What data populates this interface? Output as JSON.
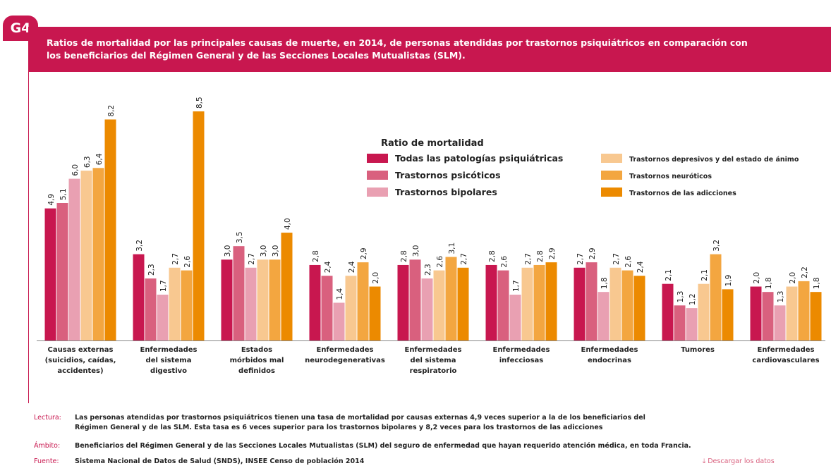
{
  "badge": "G4",
  "chart_data": {
    "type": "bar",
    "title": "Ratios de mortalidad por las principales causas de muerte, en 2014, de personas atendidas por trastornos psiquiátricos en comparación con\nlos beneficiarios del Régimen General y de las Secciones Locales Mutualistas (SLM).",
    "legend_title": "Ratio de mortalidad",
    "categories": [
      "Causas externas\n(suicidios, caídas,\naccidentes)",
      "Enfermedades\ndel sistema\ndigestivo",
      "Estados\nmórbidos mal\ndefinidos",
      "Enfermedades\nneurodegenerativas",
      "Enfermedades\ndel sistema\nrespiratorio",
      "Enfermedades\ninfecciosas",
      "Enfermedades\nendocrinas",
      "Tumores",
      "Enfermedades\ncardiovasculares"
    ],
    "series": [
      {
        "name": "Todas las patologías psiquiátricas",
        "color": "#c8174f",
        "values": [
          4.9,
          3.2,
          3.0,
          2.8,
          2.8,
          2.8,
          2.7,
          2.1,
          2.0
        ],
        "value_labels": [
          "4,9",
          "3,2",
          "3,0",
          "2,8",
          "2,8",
          "2,8",
          "2,7",
          "2,1",
          "2,0"
        ]
      },
      {
        "name": "Trastornos psicóticos",
        "color": "#d9607e",
        "values": [
          5.1,
          2.3,
          3.5,
          2.4,
          3.0,
          2.6,
          2.9,
          1.3,
          1.8
        ],
        "value_labels": [
          "5,1",
          "2,3",
          "3,5",
          "2,4",
          "3,0",
          "2,6",
          "2,9",
          "1,3",
          "1,8"
        ]
      },
      {
        "name": "Trastornos bipolares",
        "color": "#e9a0b2",
        "values": [
          6.0,
          1.7,
          2.7,
          1.4,
          2.3,
          1.7,
          1.8,
          1.2,
          1.3
        ],
        "value_labels": [
          "6,0",
          "1,7",
          "2,7",
          "1,4",
          "2,3",
          "1,7",
          "1,8",
          "1,2",
          "1,3"
        ]
      },
      {
        "name": "Trastornos depresivos y del estado de ánimo",
        "color": "#f8c890",
        "values": [
          6.3,
          2.7,
          3.0,
          2.4,
          2.6,
          2.7,
          2.7,
          2.1,
          2.0
        ],
        "value_labels": [
          "6,3",
          "2,7",
          "3,0",
          "2,4",
          "2,6",
          "2,7",
          "2,7",
          "2,1",
          "2,0"
        ]
      },
      {
        "name": "Trastornos neuróticos",
        "color": "#f3a640",
        "values": [
          6.4,
          2.6,
          3.0,
          2.9,
          3.1,
          2.8,
          2.6,
          3.2,
          2.2
        ],
        "value_labels": [
          "6,4",
          "2,6",
          "3,0",
          "2,9",
          "3,1",
          "2,8",
          "2,6",
          "3,2",
          "2,2"
        ]
      },
      {
        "name": "Trastornos de las adicciones",
        "color": "#ec8a00",
        "values": [
          8.2,
          8.5,
          4.0,
          2.0,
          2.7,
          2.9,
          2.4,
          1.9,
          1.8
        ],
        "value_labels": [
          "8,2",
          "8,5",
          "4,0",
          "2,0",
          "2,7",
          "2,9",
          "2,4",
          "1,9",
          "1,8"
        ]
      }
    ]
  },
  "notes": [
    {
      "label": "Lectura:",
      "text": "Las personas atendidas por trastornos psiquiátricos tienen una tasa de mortalidad por causas externas 4,9 veces superior a la de los beneficiarios del\nRégimen General y de las SLM. Esta tasa es 6 veces superior para los trastornos bipolares y 8,2 veces para los trastornos de las adicciones"
    },
    {
      "label": "Ámbito:",
      "text": "Beneficiarios del Régimen General y de las Secciones Locales Mutualistas (SLM) del seguro de enfermedad que hayan requerido atención médica, en toda Francia."
    },
    {
      "label": "Fuente:",
      "text": "Sistema Nacional de Datos de Salud (SNDS), INSEE Censo de población 2014"
    }
  ],
  "download": "Descargar los datos"
}
